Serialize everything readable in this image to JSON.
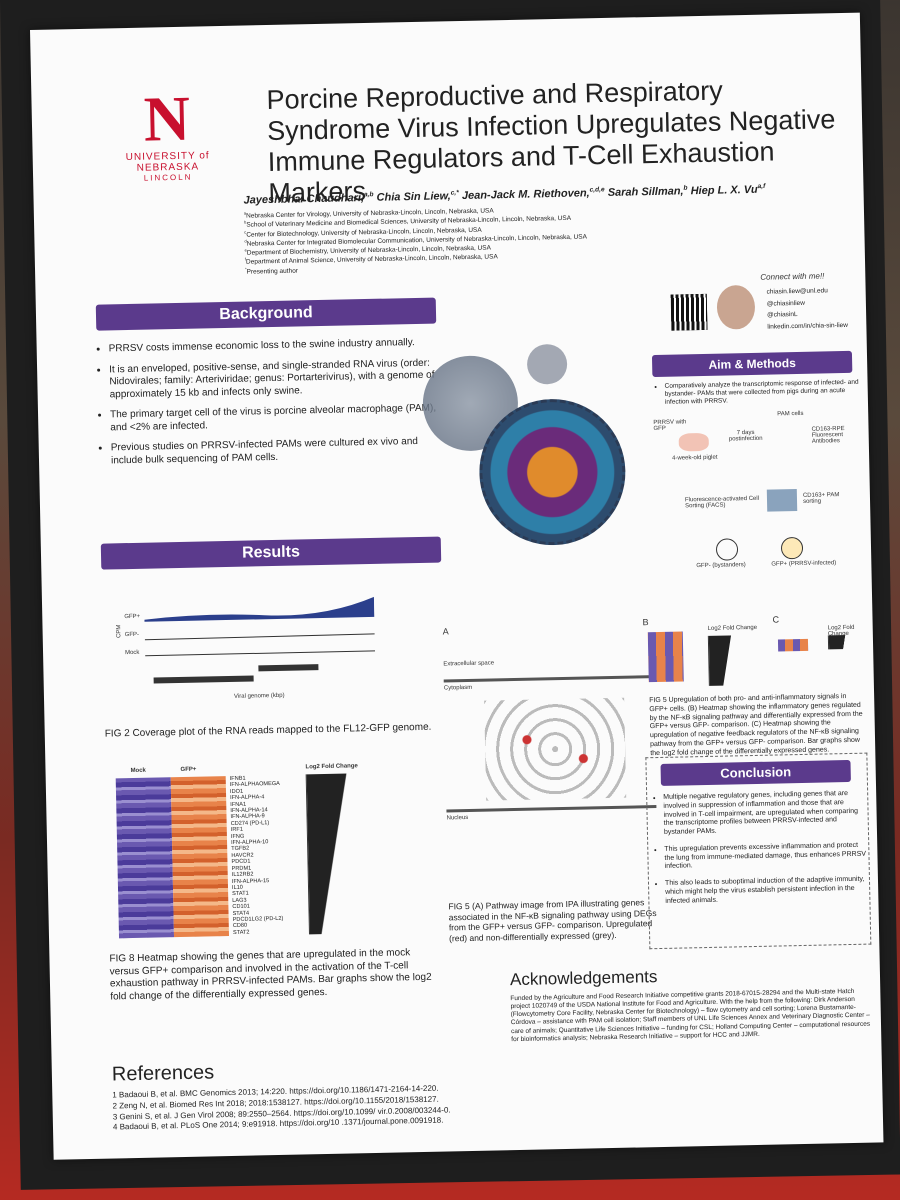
{
  "university": {
    "letter": "N",
    "name": "UNIVERSITY of NEBRASKA",
    "campus": "LINCOLN"
  },
  "title": "Porcine Reproductive and Respiratory Syndrome Virus Infection Upregulates Negative Immune Regulators and T-Cell Exhaustion Markers",
  "authors": [
    {
      "name": "Jayeshbhai Chaudhari,",
      "sup": "a,b"
    },
    {
      "name": "Chia Sin Liew,",
      "sup": "c,*"
    },
    {
      "name": "Jean-Jack M. Riethoven,",
      "sup": "c,d,e"
    },
    {
      "name": "Sarah Sillman,",
      "sup": "b"
    },
    {
      "name": "Hiep L. X. Vu",
      "sup": "a,f"
    }
  ],
  "affiliations": [
    {
      "sup": "a",
      "text": "Nebraska Center for Virology, University of Nebraska-Lincoln, Lincoln, Nebraska, USA"
    },
    {
      "sup": "b",
      "text": "School of Veterinary Medicine and Biomedical Sciences, University of Nebraska-Lincoln, Lincoln, Nebraska, USA"
    },
    {
      "sup": "c",
      "text": "Center for Biotechnology, University of Nebraska-Lincoln, Lincoln, Nebraska, USA"
    },
    {
      "sup": "d",
      "text": "Nebraska Center for Integrated Biomolecular Communication, University of Nebraska-Lincoln, Lincoln, Nebraska, USA"
    },
    {
      "sup": "e",
      "text": "Department of Biochemistry, University of Nebraska-Lincoln, Lincoln, Nebraska, USA"
    },
    {
      "sup": "f",
      "text": "Department of Animal Science, University of Nebraska-Lincoln, Lincoln, Nebraska, USA"
    },
    {
      "sup": "*",
      "text": "Presenting author"
    }
  ],
  "contact": {
    "heading": "Connect with me!!",
    "items": [
      "chiasin.liew@unl.edu",
      "@chiasinliew",
      "@chiasinL",
      "linkedin.com/in/chia-sin-liew"
    ]
  },
  "background": {
    "heading": "Background",
    "bullets": [
      "PRRSV costs immense economic loss to the swine industry annually.",
      "It is an enveloped, positive-sense, and single-stranded RNA virus (order: Nidovirales; family: Arteriviridae; genus: Portarterivirus), with a genome of approximately 15 kb and infects only swine.",
      "The primary target cell of the virus is porcine alveolar macrophage (PAM), and <2% are infected.",
      "Previous studies on PRRSV-infected PAMs were cultured ex vivo and include bulk sequencing of PAM cells."
    ]
  },
  "aim_methods": {
    "heading": "Aim & Methods",
    "bullet": "Comparatively analyze the transcriptomic response of infected- and bystander- PAMs that were collected from pigs during an acute infection with PRRSV.",
    "diagram": {
      "virus": "PRRSV with GFP",
      "piglet": "4-week-old piglet",
      "days": "7 days postinfection",
      "cells": "PAM cells",
      "antibody": "CD163-RPE Fluorescent Antibodies",
      "facs": "Fluorescence-activated Cell Sorting (FACS)",
      "sorting": "CD163+ PAM sorting",
      "neg": "GFP- (bystanders)",
      "pos": "GFP+ (PRRSV-infected)"
    }
  },
  "results": {
    "heading": "Results"
  },
  "fig2": {
    "ylabel": "CPM",
    "tracks": [
      "GFP+",
      "GFP-",
      "Mock"
    ],
    "xlabel": "Viral genome (kbp)",
    "caption": "FIG 2 Coverage plot of the RNA reads mapped to the FL12-GFP genome."
  },
  "fig8": {
    "groups": [
      "Mock",
      "GFP+"
    ],
    "bar_title": "Log2 Fold Change",
    "genes": [
      "IFNB1",
      "IFN-ALPHAOMEGA",
      "IDO1",
      "IFN-ALPHA-4",
      "IFNA1",
      "IFN-ALPHA-14",
      "IFN-ALPHA-9",
      "CD274 (PD-L1)",
      "IRF1",
      "IFNG",
      "IFN-ALPHA-10",
      "TGFB2",
      "HAVCR2",
      "PDCD1",
      "PRDM1",
      "IL12RB2",
      "IFN-ALPHA-15",
      "IL10",
      "STAT1",
      "LAG3",
      "CD101",
      "STAT4",
      "PDCD1LG2 (PD-L2)",
      "CD80",
      "STAT2"
    ],
    "caption": "FIG 8 Heatmap showing the genes that are upregulated in the mock versus GFP+ comparison and involved in the activation of the T-cell exhaustion pathway in PRRSV-infected PAMs. Bar graphs show the log2 fold change of the differentially expressed genes."
  },
  "fig5": {
    "panels": [
      "A",
      "B",
      "C"
    ],
    "compartments": [
      "Extracellular space",
      "Cytoplasm",
      "Nucleus"
    ],
    "caption_a": "FIG 5 (A) Pathway image from IPA illustrating genes associated in the NF-κB signaling pathway using DEGs from the GFP+ versus GFP- comparison. Upregulated (red) and non-differentially expressed (grey).",
    "caption_bc": "FIG 5 Upregulation of both pro- and anti-inflammatory signals in GFP+ cells. (B) Heatmap showing the inflammatory genes regulated by the NF-κB signaling pathway and differentially expressed from the GFP+ versus GFP- comparison. (C) Heatmap showing the upregulation of negative feedback regulators of the NF-κB signaling pathway from the GFP+ versus GFP- comparison. Bar graphs show the log2 fold change of the differentially expressed genes.",
    "bar_title": "Log2 Fold Change"
  },
  "conclusion": {
    "heading": "Conclusion",
    "bullets": [
      "Multiple negative regulatory genes, including genes that are involved in suppression of inflammation and those that are involved in T-cell impairment, are upregulated when comparing the transcriptome profiles between PRRSV-infected and bystander PAMs.",
      "This upregulation prevents excessive inflammation and protect the lung from immune-mediated damage, thus enhances PRRSV infection.",
      "This also leads to suboptimal induction of the adaptive immunity, which might help the virus establish persistent infection in the infected animals."
    ]
  },
  "acknowledgements": {
    "heading": "Acknowledgements",
    "text": "Funded by the Agriculture and Food Research Initiative competitive grants 2018-67015-28294 and the Multi-state Hatch project 1020749 of the USDA National Institute for Food and Agriculture. With the help from the following: Dirk Anderson (Flowcytometry Core Facility, Nebraska Center for Biotechnology) – flow cytometry and cell sorting; Lorena Bustamante-Córdova – assistance with PAM cell isolation; Staff members of UNL Life Sciences Annex and Veterinary Diagnostic Center – care of animals; Quantitative Life Sciences Initiative – funding for CSL; Holland Computing Center – computational resources for bioinformatics analysis; Nebraska Research Initiative – support for HCC and JJMR."
  },
  "references": {
    "heading": "References",
    "items": [
      "1 Badaoui B, et al. BMC Genomics 2013; 14:220. https://doi.org/10.1186/1471-2164-14-220.",
      "2 Zeng N, et al. Biomed Res Int 2018; 2018:1538127. https://doi.org/10.1155/2018/1538127.",
      "3 Genini S, et al. J Gen Virol 2008; 89:2550–2564. https://doi.org/10.1099/ vir.0.2008/003244-0.",
      "4 Badaoui B, et al. PLoS One 2014; 9:e91918. https://doi.org/10 .1371/journal.pone.0091918."
    ]
  }
}
